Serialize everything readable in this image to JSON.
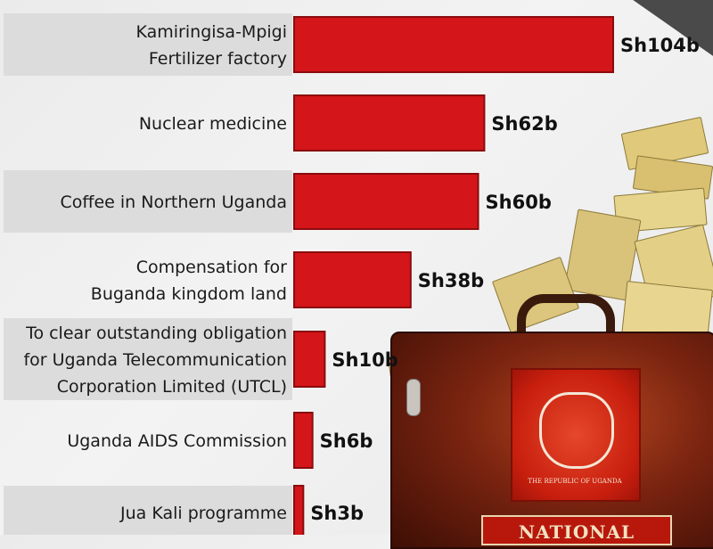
{
  "chart_data": {
    "type": "bar",
    "orientation": "horizontal",
    "categories": [
      [
        "Kamiringisa-Mpigi",
        "Fertilizer factory"
      ],
      [
        "Nuclear medicine"
      ],
      [
        "Coffee in Northern Uganda"
      ],
      [
        "Compensation for",
        "Buganda kingdom land"
      ],
      [
        "To clear outstanding obligation",
        "for Uganda Telecommunication",
        "Corporation Limited (UTCL)"
      ],
      [
        "Uganda AIDS Commission"
      ],
      [
        "Jua Kali programme"
      ]
    ],
    "values": [
      104,
      62,
      60,
      38,
      10,
      6,
      3
    ],
    "value_labels": [
      "Sh104b",
      "Sh62b",
      "Sh60b",
      "Sh38b",
      "Sh10b",
      "Sh6b",
      "Sh3b"
    ],
    "unit": "billion shillings",
    "bar_color": "#d4151a",
    "grid": false
  },
  "illustration": {
    "emblem_caption": "THE REPUBLIC OF UGANDA",
    "budget_text": "NATIONAL BUDGET"
  }
}
